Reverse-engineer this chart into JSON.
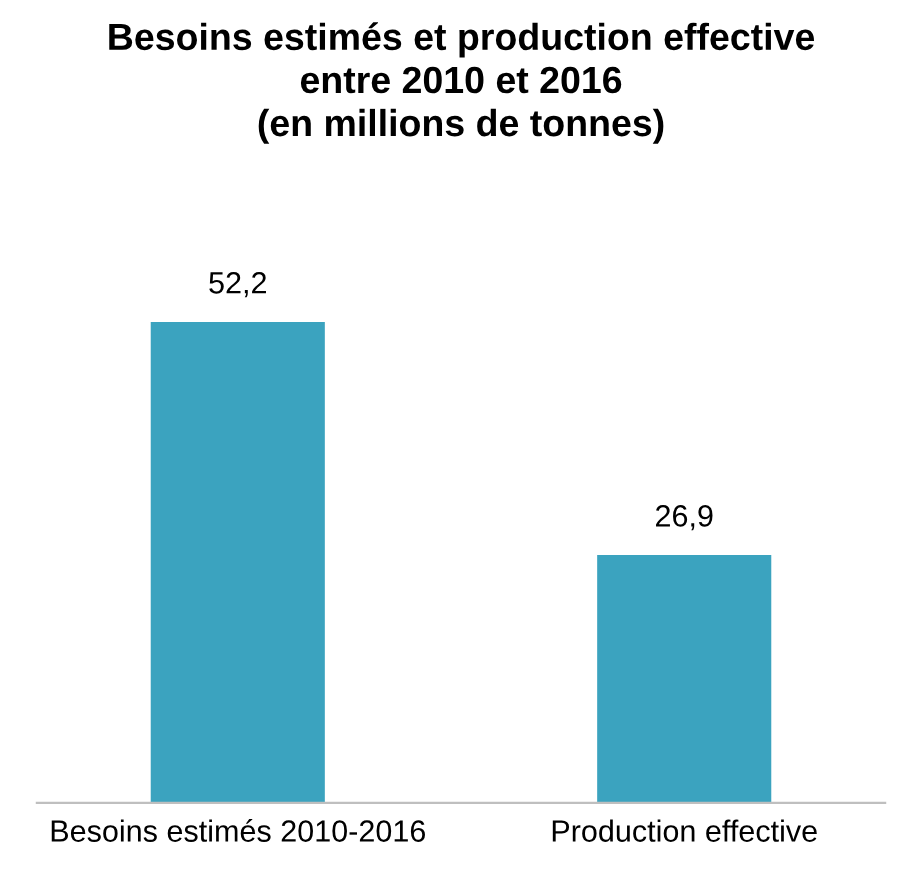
{
  "chart_data": {
    "type": "bar",
    "title": "Besoins estimés et production effective\nentre 2010 et 2016\n(en millions de tonnes)",
    "categories": [
      "Besoins estimés 2010-2016",
      "Production effective"
    ],
    "values": [
      52.2,
      26.9
    ],
    "value_labels": [
      "52,2",
      "26,9"
    ],
    "color": "#3ba3bf",
    "grid": false,
    "legend": false
  }
}
